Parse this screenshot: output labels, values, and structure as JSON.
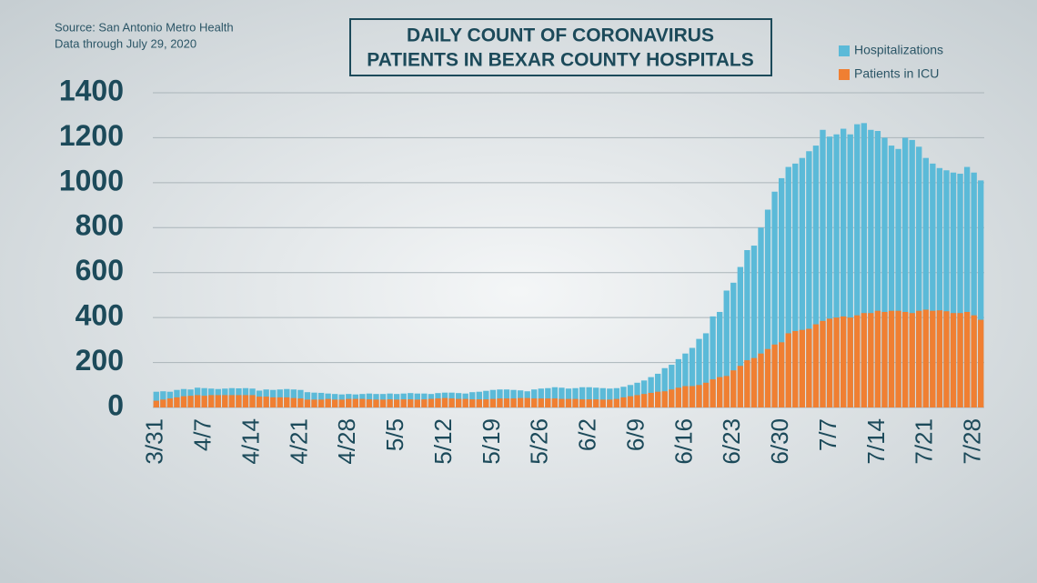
{
  "chart_data": {
    "type": "bar",
    "overlay": true,
    "title": [
      "DAILY COUNT OF CORONAVIRUS",
      "PATIENTS IN BEXAR COUNTY HOSPITALS"
    ],
    "source": "Source: San Antonio Metro Health",
    "subtitle": "Data through July 29, 2020",
    "categories": [
      "3/31",
      null,
      null,
      null,
      null,
      null,
      null,
      "4/7",
      null,
      null,
      null,
      null,
      null,
      null,
      "4/14",
      null,
      null,
      null,
      null,
      null,
      null,
      "4/21",
      null,
      null,
      null,
      null,
      null,
      null,
      "4/28",
      null,
      null,
      null,
      null,
      null,
      null,
      "5/5",
      null,
      null,
      null,
      null,
      null,
      null,
      "5/12",
      null,
      null,
      null,
      null,
      null,
      null,
      "5/19",
      null,
      null,
      null,
      null,
      null,
      null,
      "5/26",
      null,
      null,
      null,
      null,
      null,
      null,
      "6/2",
      null,
      null,
      null,
      null,
      null,
      null,
      "6/9",
      null,
      null,
      null,
      null,
      null,
      null,
      "6/16",
      null,
      null,
      null,
      null,
      null,
      null,
      "6/23",
      null,
      null,
      null,
      null,
      null,
      null,
      "6/30",
      null,
      null,
      null,
      null,
      null,
      null,
      "7/7",
      null,
      null,
      null,
      null,
      null,
      null,
      "7/14",
      null,
      null,
      null,
      null,
      null,
      null,
      "7/21",
      null,
      null,
      null,
      null,
      null,
      null,
      "7/28",
      null
    ],
    "series": [
      {
        "name": "Hospitalizations",
        "color": "#5bbad8",
        "values": [
          70,
          72,
          70,
          78,
          82,
          80,
          88,
          86,
          84,
          82,
          84,
          86,
          85,
          86,
          84,
          75,
          80,
          78,
          80,
          82,
          80,
          78,
          68,
          66,
          65,
          62,
          60,
          58,
          60,
          58,
          60,
          62,
          60,
          60,
          62,
          60,
          62,
          64,
          62,
          62,
          60,
          64,
          66,
          66,
          64,
          62,
          68,
          70,
          74,
          78,
          80,
          80,
          78,
          76,
          72,
          80,
          84,
          86,
          90,
          88,
          84,
          86,
          90,
          90,
          88,
          86,
          84,
          86,
          92,
          100,
          110,
          120,
          135,
          150,
          175,
          190,
          215,
          240,
          265,
          305,
          330,
          405,
          425,
          520,
          555,
          625,
          700,
          720,
          800,
          880,
          960,
          1020,
          1070,
          1085,
          1110,
          1140,
          1165,
          1235,
          1205,
          1215,
          1240,
          1215,
          1260,
          1265,
          1235,
          1230,
          1200,
          1165,
          1150,
          1200,
          1190,
          1160,
          1110,
          1085,
          1065,
          1055,
          1045,
          1040,
          1070,
          1045,
          1010
        ]
      },
      {
        "name": "Patients in ICU",
        "color": "#f07f32",
        "values": [
          30,
          35,
          40,
          45,
          50,
          52,
          55,
          52,
          55,
          55,
          55,
          55,
          55,
          55,
          55,
          48,
          48,
          45,
          45,
          45,
          42,
          40,
          35,
          35,
          35,
          38,
          35,
          35,
          38,
          38,
          38,
          36,
          35,
          35,
          36,
          35,
          36,
          36,
          35,
          36,
          38,
          40,
          42,
          40,
          38,
          38,
          36,
          36,
          36,
          38,
          40,
          40,
          40,
          42,
          42,
          40,
          40,
          40,
          40,
          38,
          38,
          38,
          36,
          36,
          36,
          35,
          35,
          38,
          45,
          50,
          55,
          60,
          65,
          70,
          72,
          80,
          88,
          95,
          95,
          100,
          110,
          125,
          135,
          140,
          165,
          185,
          210,
          220,
          240,
          260,
          280,
          290,
          330,
          340,
          345,
          350,
          370,
          385,
          395,
          400,
          405,
          400,
          410,
          420,
          420,
          430,
          425,
          430,
          430,
          425,
          420,
          430,
          435,
          430,
          432,
          428,
          420,
          420,
          425,
          410,
          390
        ]
      }
    ],
    "ylim": [
      0,
      1400
    ],
    "yticks": [
      0,
      200,
      400,
      600,
      800,
      1000,
      1200,
      1400
    ],
    "grid": true
  }
}
